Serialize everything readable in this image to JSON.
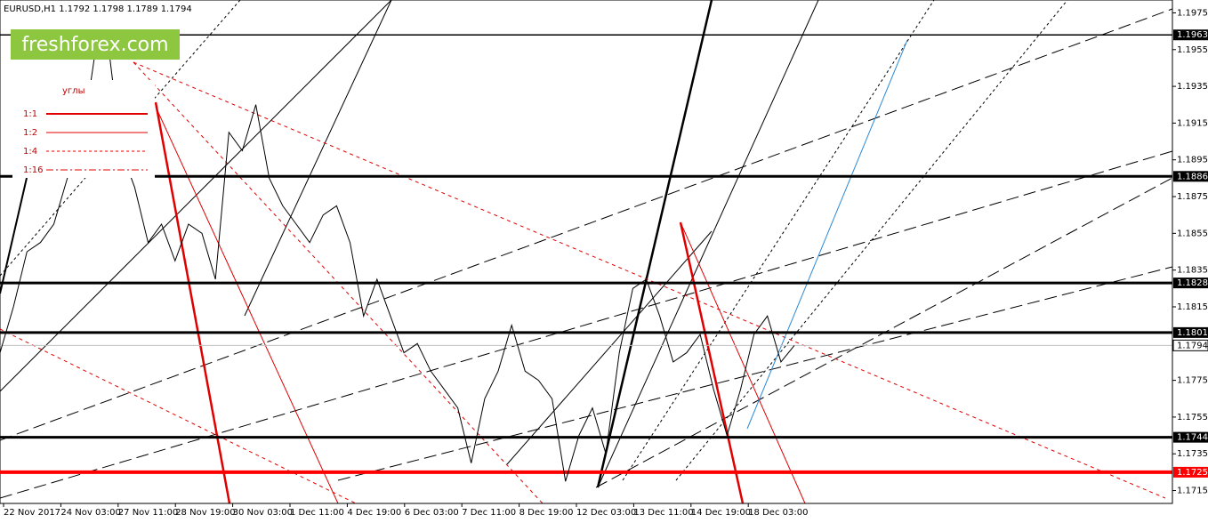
{
  "chart_data": {
    "type": "line",
    "title": "EURUSD,H1  1.1792 1.1798 1.1789 1.1794",
    "logo": "freshforex.com",
    "legend_title": "углы",
    "legend_items": [
      "1:1",
      "1:2",
      "1:4",
      "1:16"
    ],
    "color": "#000000",
    "ylim": [
      1.1708,
      1.1982
    ],
    "yticks": [
      1.1975,
      1.1955,
      1.1935,
      1.1915,
      1.1895,
      1.1875,
      1.1855,
      1.1835,
      1.1815,
      1.1795,
      1.1775,
      1.1755,
      1.1735,
      1.1715
    ],
    "x_labels": [
      "22 Nov 2017",
      "24 Nov 03:00",
      "27 Nov 11:00",
      "28 Nov 19:00",
      "30 Nov 03:00",
      "1 Dec 11:00",
      "4 Dec 19:00",
      "6 Dec 03:00",
      "7 Dec 11:00",
      "8 Dec 19:00",
      "12 Dec 03:00",
      "13 Dec 11:00",
      "14 Dec 19:00",
      "18 Dec 03:00"
    ],
    "values": [
      1.179,
      1.1815,
      1.1845,
      1.185,
      1.186,
      1.1885,
      1.19,
      1.195,
      1.196,
      1.19,
      1.188,
      1.185,
      1.186,
      1.184,
      1.186,
      1.1855,
      1.183,
      1.191,
      1.19,
      1.1925,
      1.1885,
      1.187,
      1.186,
      1.185,
      1.1865,
      1.187,
      1.185,
      1.181,
      1.183,
      1.181,
      1.179,
      1.1795,
      1.178,
      1.177,
      1.176,
      1.173,
      1.1765,
      1.178,
      1.1805,
      1.178,
      1.1775,
      1.1765,
      1.172,
      1.1745,
      1.176,
      1.1735,
      1.179,
      1.1825,
      1.183,
      1.181,
      1.1785,
      1.179,
      1.18,
      1.177,
      1.1745,
      1.177,
      1.18,
      1.181,
      1.1785,
      1.1794
    ],
    "levels": [
      {
        "value": 1.1963,
        "color": "#000000",
        "width": 1.5
      },
      {
        "value": 1.1886,
        "color": "#000000",
        "width": 3
      },
      {
        "value": 1.1828,
        "color": "#000000",
        "width": 3
      },
      {
        "value": 1.1801,
        "color": "#000000",
        "width": 3
      },
      {
        "value": 1.1794,
        "color": "#c0c0c0",
        "width": 1
      },
      {
        "value": 1.1744,
        "color": "#000000",
        "width": 3
      },
      {
        "value": 1.1725,
        "color": "#ff0000",
        "width": 4
      }
    ]
  }
}
